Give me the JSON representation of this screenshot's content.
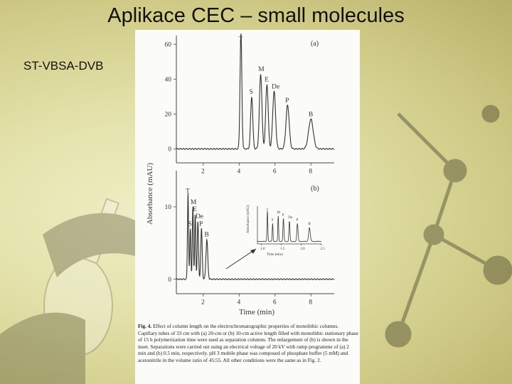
{
  "slide": {
    "title": "Aplikace CEC – small molecules",
    "subtitle": "ST-VBSA-DVB"
  },
  "figure": {
    "caption_label": "Fig. 4.",
    "caption_text": "Effect of column length on the electrochromatographic properties of monolithic columns. Capillary tubes of 33 cm with (a) 20-cm or (b) 10-cm active length filled with monolithic stationary phase of 15 h polymerization time were used as separation columns. The enlargement of (b) is shown in the inset. Separations were carried out using an electrical voltage of 20 kV with ramp programme of (a) 2 min and (b) 0.5 min, respectively. pH 3 mobile phase was composed of phosphate buffer (5 mM) and acetonitrile in the volume ratio of 45:55. All other conditions were the same as in Fig. 2."
  },
  "chart_data": [
    {
      "type": "line",
      "panel_label": "(a)",
      "xlabel": "Time (min)",
      "ylabel": "Absorbance (mAU)",
      "xlim": [
        0.5,
        9.3
      ],
      "ylim": [
        -8,
        65
      ],
      "x_ticks": [
        "2",
        "4",
        "6",
        "8"
      ],
      "y_ticks": [
        "0",
        "20",
        "40",
        "60"
      ],
      "peaks": [
        {
          "label": "T",
          "x": 4.1,
          "height": 67,
          "width": 0.05
        },
        {
          "label": "S",
          "x": 4.7,
          "height": 30,
          "width": 0.06
        },
        {
          "label": "M",
          "x": 5.2,
          "height": 43,
          "width": 0.07
        },
        {
          "label": "E",
          "x": 5.55,
          "height": 37,
          "width": 0.07
        },
        {
          "label": "De",
          "x": 5.95,
          "height": 33,
          "width": 0.08
        },
        {
          "label": "P",
          "x": 6.7,
          "height": 25,
          "width": 0.09
        },
        {
          "label": "B",
          "x": 8.0,
          "height": 17,
          "width": 0.13
        }
      ]
    },
    {
      "type": "line",
      "panel_label": "(b)",
      "xlabel": "Time (min)",
      "ylabel": "Absorbance (mAU)",
      "xlim": [
        0.5,
        9.3
      ],
      "ylim": [
        -2,
        15
      ],
      "x_ticks": [
        "2",
        "4",
        "6",
        "8"
      ],
      "y_ticks": [
        "0",
        "10"
      ],
      "peaks": [
        {
          "label": "T",
          "x": 1.15,
          "height": 12,
          "width": 0.03
        },
        {
          "label": "S",
          "x": 1.28,
          "height": 7,
          "width": 0.03
        },
        {
          "label": "M",
          "x": 1.42,
          "height": 10,
          "width": 0.03
        },
        {
          "label": "E",
          "x": 1.55,
          "height": 9,
          "width": 0.03
        },
        {
          "label": "De",
          "x": 1.7,
          "height": 8,
          "width": 0.035
        },
        {
          "label": "P",
          "x": 1.9,
          "height": 7,
          "width": 0.04
        },
        {
          "label": "B",
          "x": 2.2,
          "height": 5.5,
          "width": 0.05
        }
      ]
    },
    {
      "type": "line",
      "panel_label": "inset",
      "xlabel": "Time (min)",
      "ylabel": "Absorbance (mAU)",
      "xlim": [
        0.9,
        2.5
      ],
      "ylim": [
        -1,
        14
      ],
      "x_ticks": [
        "1.0",
        "1.5",
        "2.0",
        "2.5"
      ],
      "y_ticks": [],
      "peaks": [
        {
          "label": "T",
          "x": 1.15,
          "height": 12,
          "width": 0.01
        },
        {
          "label": "S",
          "x": 1.28,
          "height": 7,
          "width": 0.01
        },
        {
          "label": "M",
          "x": 1.42,
          "height": 10,
          "width": 0.01
        },
        {
          "label": "E",
          "x": 1.55,
          "height": 9,
          "width": 0.012
        },
        {
          "label": "De",
          "x": 1.7,
          "height": 8,
          "width": 0.012
        },
        {
          "label": "P",
          "x": 1.9,
          "height": 7,
          "width": 0.015
        },
        {
          "label": "B",
          "x": 2.2,
          "height": 5.5,
          "width": 0.02
        }
      ]
    }
  ]
}
